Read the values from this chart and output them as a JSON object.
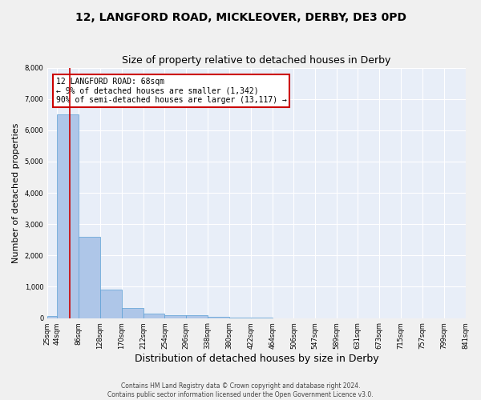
{
  "title1": "12, LANGFORD ROAD, MICKLEOVER, DERBY, DE3 0PD",
  "title2": "Size of property relative to detached houses in Derby",
  "xlabel": "Distribution of detached houses by size in Derby",
  "ylabel": "Number of detached properties",
  "footer1": "Contains HM Land Registry data © Crown copyright and database right 2024.",
  "footer2": "Contains public sector information licensed under the Open Government Licence v3.0.",
  "annotation_line1": "12 LANGFORD ROAD: 68sqm",
  "annotation_line2": "← 9% of detached houses are smaller (1,342)",
  "annotation_line3": "90% of semi-detached houses are larger (13,117) →",
  "property_size": 68,
  "bin_edges": [
    25,
    44,
    86,
    128,
    170,
    212,
    254,
    296,
    338,
    380,
    422,
    464,
    506,
    547,
    589,
    631,
    673,
    715,
    757,
    799,
    841
  ],
  "bar_heights": [
    75,
    6500,
    2600,
    900,
    330,
    150,
    100,
    100,
    50,
    20,
    5,
    2,
    1,
    0,
    0,
    0,
    0,
    0,
    0,
    0
  ],
  "bar_color": "#aec6e8",
  "bar_edgecolor": "#5a9fd4",
  "vline_color": "#cc0000",
  "vline_x": 68,
  "ylim": [
    0,
    8000
  ],
  "yticks": [
    0,
    1000,
    2000,
    3000,
    4000,
    5000,
    6000,
    7000,
    8000
  ],
  "bg_color": "#e8eef8",
  "grid_color": "#ffffff",
  "annotation_box_color": "#cc0000",
  "title1_fontsize": 10,
  "title2_fontsize": 9,
  "xlabel_fontsize": 9,
  "ylabel_fontsize": 8,
  "tick_fontsize": 6,
  "footer_fontsize": 5.5,
  "ann_fontsize": 7
}
